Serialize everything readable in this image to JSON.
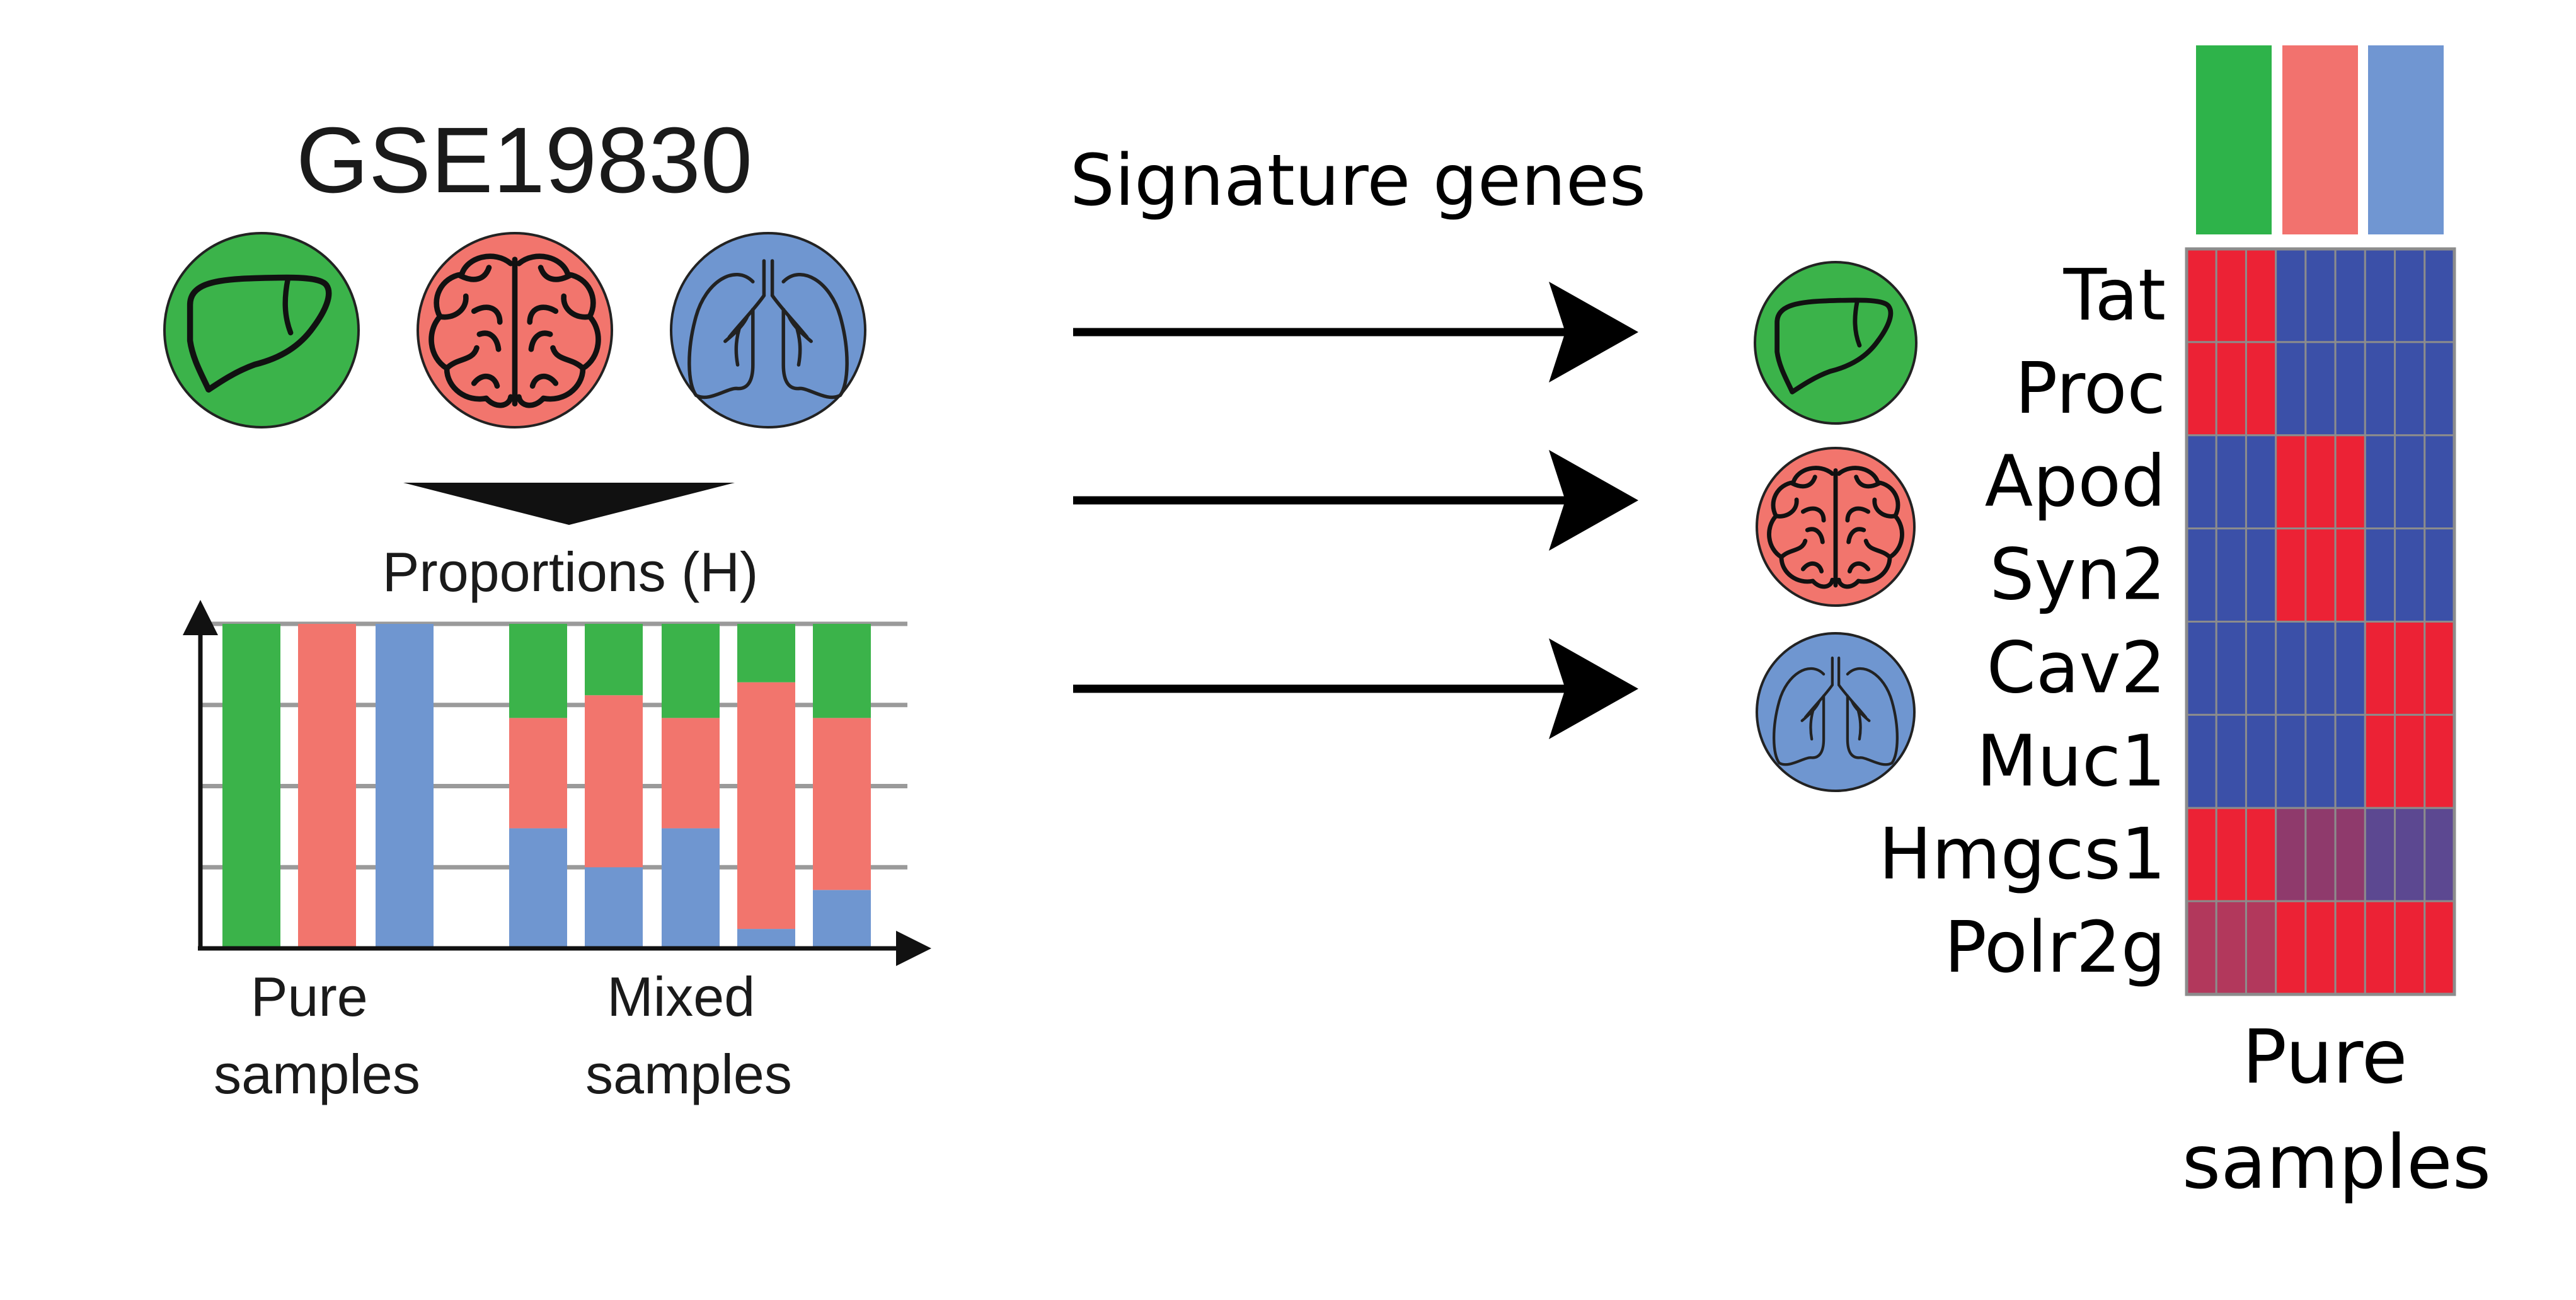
{
  "dataset": {
    "title": "GSE19830"
  },
  "tissues": [
    {
      "name": "liver",
      "color": "#3bb34a",
      "icon": "liver-icon"
    },
    {
      "name": "brain",
      "color": "#f2756d",
      "icon": "brain-icon"
    },
    {
      "name": "lung",
      "color": "#6f96d0",
      "icon": "lung-icon"
    }
  ],
  "proportions": {
    "title": "Proportions (H)",
    "pure_label": [
      "Pure",
      "samples"
    ],
    "mixed_label": [
      "Mixed",
      "samples"
    ],
    "pure_samples": [
      {
        "liver": 1.0,
        "brain": 0.0,
        "lung": 0.0
      },
      {
        "liver": 0.0,
        "brain": 1.0,
        "lung": 0.0
      },
      {
        "liver": 0.0,
        "brain": 0.0,
        "lung": 1.0
      }
    ],
    "mixed_samples": [
      {
        "liver": 0.29,
        "brain": 0.34,
        "lung": 0.37
      },
      {
        "liver": 0.22,
        "brain": 0.53,
        "lung": 0.25
      },
      {
        "liver": 0.29,
        "brain": 0.34,
        "lung": 0.37
      },
      {
        "liver": 0.18,
        "brain": 0.76,
        "lung": 0.06
      },
      {
        "liver": 0.29,
        "brain": 0.53,
        "lung": 0.18
      }
    ]
  },
  "arrows": {
    "label": "Signature genes"
  },
  "heatmap": {
    "column_groups": [
      "liver",
      "liver",
      "liver",
      "brain",
      "brain",
      "brain",
      "lung",
      "lung",
      "lung"
    ],
    "group_colors": [
      "#2eb34a",
      "#f2726e",
      "#7096d2"
    ],
    "genes": [
      "Tat",
      "Proc",
      "Apod",
      "Syn2",
      "Cav2",
      "Muc1",
      "Hmgcs1",
      "Polr2g"
    ],
    "gene_groups": [
      "liver",
      "liver",
      "brain",
      "brain",
      "lung",
      "lung",
      "",
      ""
    ],
    "cells": [
      [
        "#ec2235",
        "#ec2235",
        "#ec2235",
        "#3b50a8",
        "#3b50a8",
        "#3b50a8",
        "#3b50a8",
        "#3b50a8",
        "#3b50a8"
      ],
      [
        "#ec2235",
        "#ec2235",
        "#ec2235",
        "#3b50a8",
        "#3b50a8",
        "#3b50a8",
        "#3b50a8",
        "#3b50a8",
        "#3b50a8"
      ],
      [
        "#3b50a8",
        "#3b50a8",
        "#3b50a8",
        "#ec2235",
        "#ec2235",
        "#ec2235",
        "#3b50a8",
        "#3b50a8",
        "#3b50a8"
      ],
      [
        "#3b50a8",
        "#3b50a8",
        "#3b50a8",
        "#ec2235",
        "#ec2235",
        "#ec2235",
        "#3b50a8",
        "#3b50a8",
        "#3b50a8"
      ],
      [
        "#3b50a8",
        "#3b50a8",
        "#3b50a8",
        "#3b50a8",
        "#3b50a8",
        "#3b50a8",
        "#ec2235",
        "#ec2235",
        "#ec2235"
      ],
      [
        "#3b50a8",
        "#3b50a8",
        "#3b50a8",
        "#3b50a8",
        "#3b50a8",
        "#3b50a8",
        "#ec2235",
        "#ec2235",
        "#ec2235"
      ],
      [
        "#ec2235",
        "#ec2235",
        "#ec2235",
        "#8f3a6c",
        "#8f3a6c",
        "#8f3a6c",
        "#5c4891",
        "#5c4891",
        "#5c4891"
      ],
      [
        "#b2385c",
        "#b2385c",
        "#b2385c",
        "#ec2235",
        "#ec2235",
        "#ec2235",
        "#ec2235",
        "#ec2235",
        "#ec2235"
      ]
    ],
    "footer": [
      "Pure",
      "samples"
    ]
  }
}
